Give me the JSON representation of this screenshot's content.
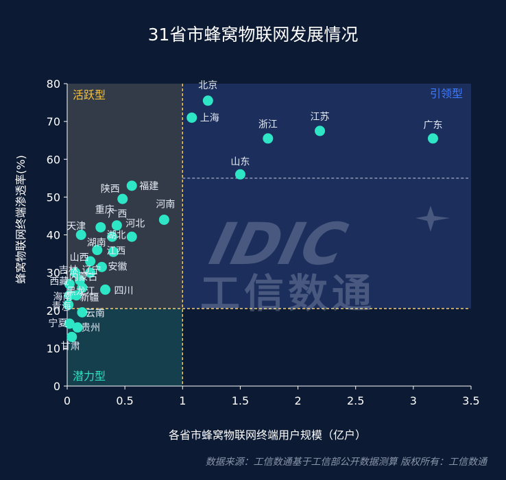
{
  "chart_data": {
    "type": "scatter",
    "title": "31省市蜂窝物联网发展情况",
    "xlabel": "各省市蜂窝物联网终端用户规模（亿户）",
    "ylabel": "蜂窝物联网终端渗透率(%)",
    "xlim": [
      0,
      3.5
    ],
    "ylim": [
      0,
      80
    ],
    "xticks": [
      "0",
      "0.5",
      "1",
      "1.5",
      "2",
      "2.5",
      "3",
      "3.5"
    ],
    "yticks": [
      "0",
      "10",
      "20",
      "30",
      "40",
      "50",
      "60",
      "70",
      "80"
    ],
    "thresholds": {
      "x": 1,
      "y_low": 20.5,
      "y_high": 55
    },
    "quadrants": [
      {
        "label": "活跃型",
        "color": "#f5c23d"
      },
      {
        "label": "引领型",
        "color": "#3f7bff"
      },
      {
        "label": "潜力型",
        "color": "#2ee0c0"
      }
    ],
    "point_color": "#2ee6c6",
    "points": [
      {
        "label": "北京",
        "x": 1.22,
        "y": 75.5
      },
      {
        "label": "上海",
        "x": 1.08,
        "y": 71
      },
      {
        "label": "浙江",
        "x": 1.74,
        "y": 65.5
      },
      {
        "label": "江苏",
        "x": 2.19,
        "y": 67.5
      },
      {
        "label": "广东",
        "x": 3.17,
        "y": 65.5
      },
      {
        "label": "山东",
        "x": 1.5,
        "y": 56
      },
      {
        "label": "福建",
        "x": 0.56,
        "y": 53
      },
      {
        "label": "陕西",
        "x": 0.48,
        "y": 49.5
      },
      {
        "label": "河南",
        "x": 0.84,
        "y": 44
      },
      {
        "label": "广西",
        "x": 0.43,
        "y": 42.5
      },
      {
        "label": "重庆",
        "x": 0.29,
        "y": 42
      },
      {
        "label": "天津",
        "x": 0.12,
        "y": 40
      },
      {
        "label": "河北",
        "x": 0.56,
        "y": 39.5
      },
      {
        "label": "湖北",
        "x": 0.39,
        "y": 39.5
      },
      {
        "label": "湖南",
        "x": 0.26,
        "y": 36
      },
      {
        "label": "江西",
        "x": 0.4,
        "y": 35.5
      },
      {
        "label": "山西",
        "x": 0.2,
        "y": 33
      },
      {
        "label": "安徽",
        "x": 0.3,
        "y": 31.5
      },
      {
        "label": "吉林",
        "x": 0.07,
        "y": 30
      },
      {
        "label": "辽宁",
        "x": 0.2,
        "y": 30
      },
      {
        "label": "内蒙古",
        "x": 0.11,
        "y": 28
      },
      {
        "label": "西藏",
        "x": 0.02,
        "y": 27
      },
      {
        "label": "黑龙江",
        "x": 0.13,
        "y": 26
      },
      {
        "label": "四川",
        "x": 0.33,
        "y": 25.5
      },
      {
        "label": "海南",
        "x": 0.02,
        "y": 24
      },
      {
        "label": "新疆",
        "x": 0.08,
        "y": 24
      },
      {
        "label": "青海",
        "x": 0.01,
        "y": 21.5
      },
      {
        "label": "云南",
        "x": 0.13,
        "y": 19.5
      },
      {
        "label": "宁夏",
        "x": 0.02,
        "y": 16.5
      },
      {
        "label": "贵州",
        "x": 0.09,
        "y": 15.5
      },
      {
        "label": "甘肃",
        "x": 0.04,
        "y": 13
      }
    ]
  },
  "watermark": {
    "logo": "IDIC",
    "name": "工信数通"
  },
  "footer": "数据来源：工信数通基于工信部公开数据测算   版权所有：工信数通"
}
